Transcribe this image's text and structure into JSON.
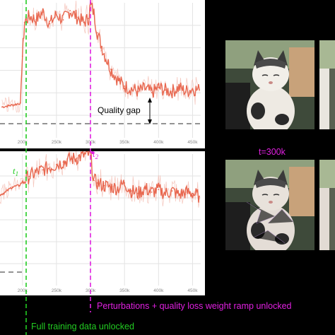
{
  "chart_data": [
    {
      "type": "line",
      "title": "",
      "xlabel": "",
      "ylabel": "",
      "x_ticks": [
        "200k",
        "250k",
        "300k",
        "350k",
        "400k",
        "450k"
      ],
      "x_tick_values": [
        200,
        250,
        300,
        350,
        400,
        450
      ],
      "xlim": [
        167,
        462
      ],
      "ylim": [
        0,
        1
      ],
      "grid": true,
      "series": [
        {
          "name": "",
          "color": "#e8674f",
          "x": [
            170,
            180,
            190,
            197,
            200,
            203,
            210,
            220,
            230,
            240,
            250,
            260,
            270,
            280,
            290,
            297,
            300,
            305,
            310,
            320,
            330,
            340,
            350,
            360,
            370,
            380,
            390,
            400,
            410,
            420,
            430,
            440,
            450,
            460
          ],
          "y": [
            0.21,
            0.22,
            0.23,
            0.24,
            0.6,
            0.86,
            0.91,
            0.88,
            0.94,
            0.85,
            0.92,
            0.88,
            0.95,
            0.9,
            0.86,
            0.89,
            1.0,
            0.93,
            0.78,
            0.62,
            0.5,
            0.42,
            0.37,
            0.35,
            0.33,
            0.35,
            0.32,
            0.36,
            0.34,
            0.33,
            0.36,
            0.33,
            0.35,
            0.34
          ]
        }
      ],
      "reference_level": 0.05,
      "annotations": [
        "Quality gap"
      ]
    },
    {
      "type": "line",
      "title": "",
      "xlabel": "",
      "ylabel": "",
      "x_ticks": [
        "200k",
        "250k",
        "300k",
        "350k",
        "400k",
        "450k"
      ],
      "x_tick_values": [
        200,
        250,
        300,
        350,
        400,
        450
      ],
      "xlim": [
        167,
        462
      ],
      "ylim": [
        0,
        1
      ],
      "grid": true,
      "series": [
        {
          "name": "",
          "color": "#e8674f",
          "x": [
            167,
            175,
            185,
            195,
            200,
            210,
            220,
            230,
            240,
            250,
            260,
            270,
            280,
            290,
            297,
            300,
            305,
            310,
            320,
            330,
            340,
            350,
            360,
            370,
            380,
            390,
            400,
            410,
            420,
            430,
            440,
            450,
            460
          ],
          "y": [
            0.69,
            0.71,
            0.75,
            0.76,
            0.79,
            0.83,
            0.86,
            0.88,
            0.9,
            0.92,
            0.94,
            0.96,
            0.97,
            0.99,
            1.0,
            0.99,
            0.8,
            0.78,
            0.76,
            0.75,
            0.74,
            0.78,
            0.72,
            0.7,
            0.74,
            0.71,
            0.73,
            0.7,
            0.72,
            0.69,
            0.71,
            0.7,
            0.68
          ]
        }
      ],
      "reference_level": 0.12,
      "annotations": [
        "t1",
        "t2"
      ]
    }
  ],
  "markers": {
    "t1_label": "t",
    "t1_sub": "1",
    "t2_label": "t",
    "t2_sub": "2",
    "full_data_label": "Full training data unlocked",
    "perturbations_label": "Perturbations + quality loss weight ramp unlocked",
    "full_data_color": "#22cc22",
    "perturbations_color": "#e020e0"
  },
  "annotation": {
    "quality_gap": "Quality gap"
  },
  "photos": {
    "t300k_label": "t=300k",
    "label_color": "#e020e0"
  },
  "colors": {
    "series": "#e8674f",
    "panel_bg": "#ffffff",
    "grid": "#e3e3e3",
    "reference_line": "#555555",
    "background": "#000000"
  }
}
